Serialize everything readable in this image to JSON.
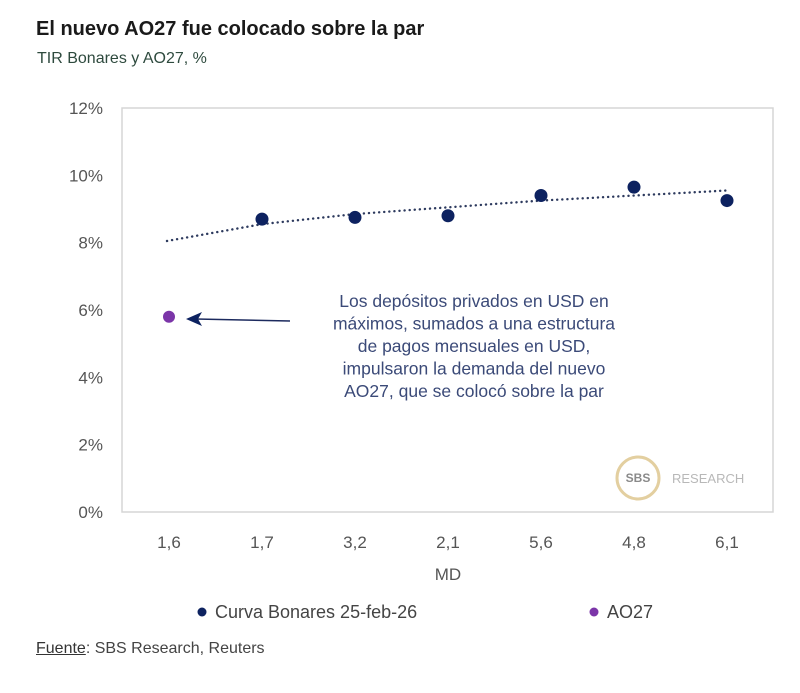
{
  "header": {
    "title": "El nuevo AO27 fue colocado sobre la par",
    "subtitle": "TIR Bonares y AO27, %"
  },
  "source": {
    "label": "Fuente",
    "text": ": SBS Research, Reuters"
  },
  "watermark": {
    "badge": "SBS",
    "text": "RESEARCH"
  },
  "chart_data": {
    "type": "scatter",
    "title": "El nuevo AO27 fue colocado sobre la par",
    "subtitle": "TIR Bonares y AO27, %",
    "xlabel": "MD",
    "ylabel": "",
    "categories": [
      "1,6",
      "1,7",
      "3,2",
      "2,1",
      "5,6",
      "4,8",
      "6,1"
    ],
    "yticks": [
      "0%",
      "2%",
      "4%",
      "6%",
      "8%",
      "10%",
      "12%"
    ],
    "ylim": [
      0,
      12
    ],
    "grid": false,
    "legend_position": "bottom",
    "series": [
      {
        "name": "Curva Bonares 25-feb-26",
        "color": "#0d2260",
        "values": [
          null,
          8.7,
          8.75,
          8.8,
          9.4,
          9.65,
          9.25
        ]
      },
      {
        "name": "AO27",
        "color": "#7b35a8",
        "values": [
          5.8,
          null,
          null,
          null,
          null,
          null,
          null
        ]
      }
    ],
    "trendline": {
      "series": "Curva Bonares 25-feb-26",
      "style": "dotted",
      "color": "#2d3a5e",
      "values": [
        8.05,
        8.55,
        8.85,
        9.05,
        9.25,
        9.4,
        9.55
      ]
    },
    "annotation": {
      "target": "AO27",
      "lines": [
        "Los depósitos privados en USD en",
        "máximos, sumados a una estructura",
        "de pagos mensuales en USD,",
        "impulsaron la demanda del nuevo",
        "AO27, que se colocó sobre la par"
      ]
    }
  }
}
